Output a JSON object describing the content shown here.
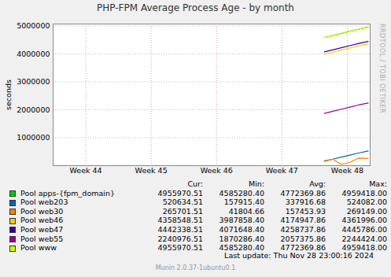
{
  "chart_data": {
    "type": "line",
    "title": "PHP-FPM Average Process Age - by month",
    "y_label": "seconds",
    "side_text": "RRDTOOL / TOBI OETIKER",
    "x": [
      47.65,
      47.78,
      47.91,
      48.04,
      48.17,
      48.32
    ],
    "xlim": [
      43.5,
      48.35
    ],
    "xticks": [
      {
        "value": 44,
        "label": "Week 44"
      },
      {
        "value": 45,
        "label": "Week 45"
      },
      {
        "value": 46,
        "label": "Week 46"
      },
      {
        "value": 47,
        "label": "Week 47"
      },
      {
        "value": 48,
        "label": "Week 48"
      }
    ],
    "ylim": [
      0,
      5070000
    ],
    "yticks": [
      1000000,
      2000000,
      3000000,
      4000000,
      5000000
    ],
    "grid": true,
    "legend_columns": [
      "Cur:",
      "Min:",
      "Avg:",
      "Max:"
    ],
    "series": [
      {
        "name": "Pool apps-{fpm_domain}",
        "color": "#00CC00",
        "values": [
          4585280,
          4660000,
          4735000,
          4810000,
          4885000,
          4959418
        ],
        "stats": [
          "4955970.51",
          "4585280.40",
          "4772369.86",
          "4959418.00"
        ]
      },
      {
        "name": "Pool web203",
        "color": "#0066B3",
        "values": [
          157915,
          232000,
          305000,
          378000,
          451000,
          524082
        ],
        "stats": [
          "520634.51",
          "157915.40",
          "337916.68",
          "524082.00"
        ]
      },
      {
        "name": "Pool web30",
        "color": "#FF8000",
        "values": [
          180000,
          230000,
          41804,
          120000,
          269149,
          265701
        ],
        "stats": [
          "265701.51",
          "41804.66",
          "157453.93",
          "269149.00"
        ]
      },
      {
        "name": "Pool web46",
        "color": "#FFCC00",
        "values": [
          3987858,
          4062000,
          4137000,
          4212000,
          4287000,
          4361996
        ],
        "stats": [
          "4358548.51",
          "3987858.40",
          "4174947.86",
          "4361996.00"
        ]
      },
      {
        "name": "Pool web47",
        "color": "#330099",
        "values": [
          4071648,
          4146000,
          4221000,
          4296000,
          4371000,
          4445786
        ],
        "stats": [
          "4442338.51",
          "4071648.40",
          "4258737.86",
          "4445786.00"
        ]
      },
      {
        "name": "Pool web55",
        "color": "#990099",
        "values": [
          1870286,
          1945000,
          2020000,
          2095000,
          2170000,
          2244424
        ],
        "stats": [
          "2240976.51",
          "1870286.40",
          "2057375.86",
          "2244424.00"
        ]
      },
      {
        "name": "Pool www",
        "color": "#CCFF00",
        "values": [
          4585280,
          4660000,
          4735000,
          4810000,
          4885000,
          4959418
        ],
        "stats": [
          "4955970.51",
          "4585280.40",
          "4772369.86",
          "4959418.00"
        ]
      }
    ],
    "last_update": "Last update: Thu Nov 28 23:00:16 2024",
    "footer": "Munin 2.0.37-1ubuntu0.1"
  }
}
